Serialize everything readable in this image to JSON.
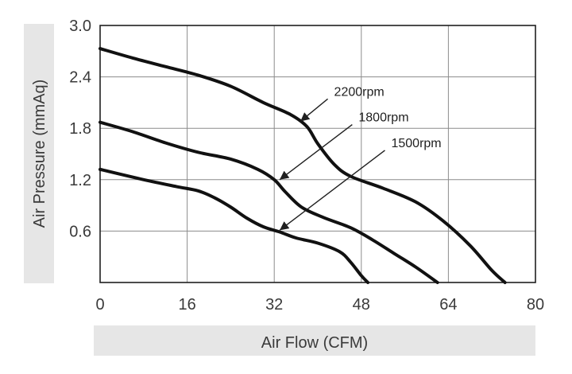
{
  "chart_data": {
    "type": "line",
    "xlabel": "Air Flow (CFM)",
    "ylabel": "Air Pressure (mmAq)",
    "xlim": [
      0,
      80
    ],
    "ylim": [
      0,
      3.0
    ],
    "x_ticks": [
      0,
      16,
      32,
      48,
      64,
      80
    ],
    "y_ticks": [
      0.6,
      1.2,
      1.8,
      2.4,
      3.0
    ],
    "x_tick_labels": [
      "0",
      "16",
      "32",
      "48",
      "64",
      "80"
    ],
    "y_tick_labels": [
      "0.6",
      "1.2",
      "1.8",
      "2.4",
      "3.0"
    ],
    "grid": true,
    "series": [
      {
        "name": "2200rpm",
        "x": [
          0,
          6,
          12,
          18,
          24,
          30,
          35,
          38,
          40,
          43,
          46,
          52,
          58,
          63,
          68,
          72,
          74.4
        ],
        "y": [
          2.73,
          2.62,
          2.52,
          2.42,
          2.29,
          2.1,
          1.96,
          1.82,
          1.62,
          1.38,
          1.24,
          1.1,
          0.94,
          0.72,
          0.43,
          0.14,
          0.0
        ]
      },
      {
        "name": "1800rpm",
        "x": [
          0,
          6,
          12,
          18,
          24,
          29,
          32,
          34,
          37,
          41,
          46,
          50,
          54,
          58,
          62
        ],
        "y": [
          1.87,
          1.76,
          1.63,
          1.52,
          1.44,
          1.32,
          1.2,
          1.06,
          0.88,
          0.76,
          0.64,
          0.5,
          0.34,
          0.18,
          0.0
        ]
      },
      {
        "name": "1500rpm",
        "x": [
          0,
          8,
          14,
          18,
          21,
          24,
          27,
          30,
          33,
          36,
          40,
          44,
          46,
          48,
          49.2
        ],
        "y": [
          1.32,
          1.2,
          1.12,
          1.07,
          0.99,
          0.88,
          0.75,
          0.65,
          0.59,
          0.52,
          0.46,
          0.36,
          0.24,
          0.08,
          0.0
        ]
      }
    ],
    "annotations": [
      {
        "text": "2200rpm",
        "series": "2200rpm",
        "text_x": 43.0,
        "text_y": 2.18,
        "arrow_x": 36.8,
        "arrow_y": 1.88
      },
      {
        "text": "1800rpm",
        "series": "1800rpm",
        "text_x": 47.5,
        "text_y": 1.88,
        "arrow_x": 33.0,
        "arrow_y": 1.2
      },
      {
        "text": "1500rpm",
        "series": "1500rpm",
        "text_x": 53.5,
        "text_y": 1.58,
        "arrow_x": 33.0,
        "arrow_y": 0.61
      }
    ]
  }
}
